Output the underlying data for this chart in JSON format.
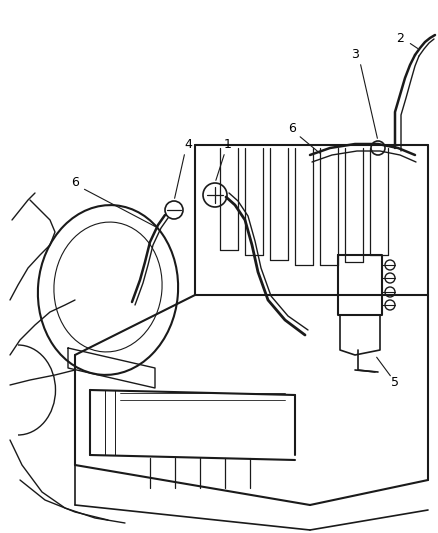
{
  "title": "",
  "background_color": "#ffffff",
  "line_color": "#1a1a1a",
  "line_width": 1.2,
  "label_color": "#000000",
  "fig_width": 4.38,
  "fig_height": 5.33,
  "dpi": 100
}
